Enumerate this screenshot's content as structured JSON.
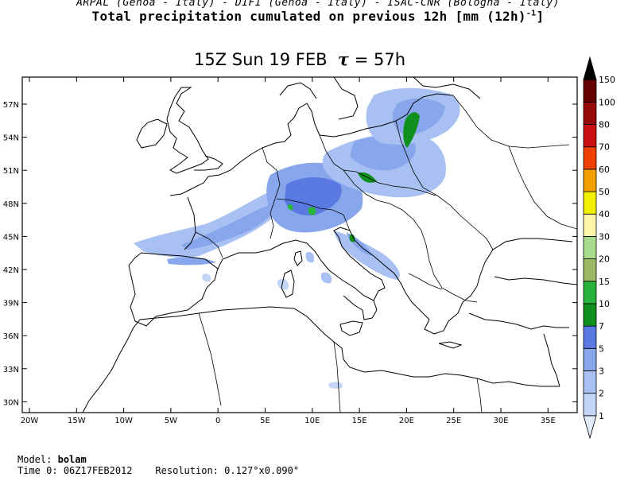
{
  "header": {
    "institutions": "ARPAL (Genoa - Italy)  -  DIFI (Genoa - Italy)  -  ISAC-CNR (Bologna - Italy)",
    "title_prefix": "Total precipitation cumulated on previous 12h [mm (12h)",
    "title_exponent": "-1",
    "title_suffix": "]"
  },
  "plot": {
    "valid_time_prefix": "15Z Sun 19 FEB",
    "tau_symbol": "τ",
    "tau_value": "= 57h",
    "lat_labels": [
      "57N",
      "54N",
      "51N",
      "48N",
      "45N",
      "42N",
      "39N",
      "36N",
      "33N",
      "30N"
    ],
    "lon_labels": [
      "20W",
      "15W",
      "10W",
      "5W",
      "0",
      "5E",
      "10E",
      "15E",
      "20E",
      "25E",
      "30E",
      "35E"
    ]
  },
  "colorbar": {
    "levels": [
      "1",
      "2",
      "3",
      "5",
      "7",
      "10",
      "15",
      "20",
      "30",
      "40",
      "50",
      "60",
      "70",
      "80",
      "100",
      "150"
    ],
    "colors": [
      "#e0ecfc",
      "#c4d6f8",
      "#a8c0f2",
      "#88a6ec",
      "#5a7ae2",
      "#10901c",
      "#28b43c",
      "#9cb864",
      "#a8dc8c",
      "#fff6a8",
      "#f0f000",
      "#f4a000",
      "#ee4000",
      "#c81010",
      "#960a0a",
      "#660000",
      "#000000"
    ]
  },
  "footer": {
    "model_label": "Model:",
    "model_value": "bolam",
    "time_label": "Time 0:",
    "time_value": "06Z17FEB2012",
    "resolution_label": "Resolution:",
    "resolution_value": "0.127°x0.090°"
  }
}
